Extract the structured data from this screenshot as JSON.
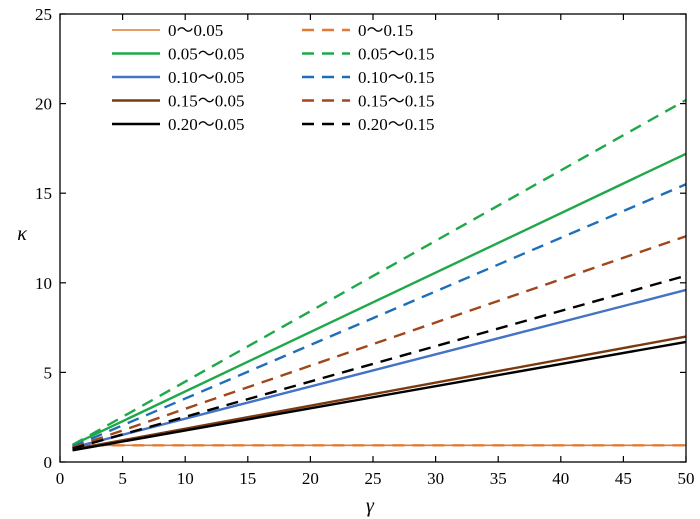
{
  "chart_data": {
    "type": "line",
    "xlabel": "γ",
    "ylabel": "κ",
    "xlim": [
      0,
      50
    ],
    "ylim": [
      0,
      25
    ],
    "xticks": [
      0,
      5,
      10,
      15,
      20,
      25,
      30,
      35,
      40,
      45,
      50
    ],
    "yticks": [
      0,
      5,
      10,
      15,
      20,
      25
    ],
    "grid": false,
    "legend_position": "top-left",
    "x": [
      1,
      50
    ],
    "series": [
      {
        "name": "0～0.05",
        "values": [
          0.93,
          0.93
        ],
        "color": "#e07b35",
        "dash": false,
        "width": 1.6
      },
      {
        "name": "0～0.15",
        "values": [
          0.93,
          0.93
        ],
        "color": "#e07b35",
        "dash": true,
        "width": 2.4
      },
      {
        "name": "0.05～0.05",
        "values": [
          0.95,
          17.2
        ],
        "color": "#1fa84a",
        "dash": false,
        "width": 2.4
      },
      {
        "name": "0.05～0.15",
        "values": [
          0.95,
          20.2
        ],
        "color": "#1fa84a",
        "dash": true,
        "width": 2.4
      },
      {
        "name": "0.10～0.05",
        "values": [
          0.8,
          9.6
        ],
        "color": "#4472c4",
        "dash": false,
        "width": 2.4
      },
      {
        "name": "0.10～0.15",
        "values": [
          0.85,
          15.5
        ],
        "color": "#1f6fb8",
        "dash": true,
        "width": 2.4
      },
      {
        "name": "0.15～0.05",
        "values": [
          0.7,
          7.0
        ],
        "color": "#7a3a10",
        "dash": false,
        "width": 2.4
      },
      {
        "name": "0.15～0.15",
        "values": [
          0.8,
          12.6
        ],
        "color": "#a0461a",
        "dash": true,
        "width": 2.4
      },
      {
        "name": "0.20～0.05",
        "values": [
          0.65,
          6.7
        ],
        "color": "#000000",
        "dash": false,
        "width": 2.4
      },
      {
        "name": "0.20～0.15",
        "values": [
          0.75,
          10.4
        ],
        "color": "#000000",
        "dash": true,
        "width": 2.4
      }
    ],
    "legend_order": [
      0,
      2,
      4,
      6,
      8,
      1,
      3,
      5,
      7,
      9
    ]
  }
}
